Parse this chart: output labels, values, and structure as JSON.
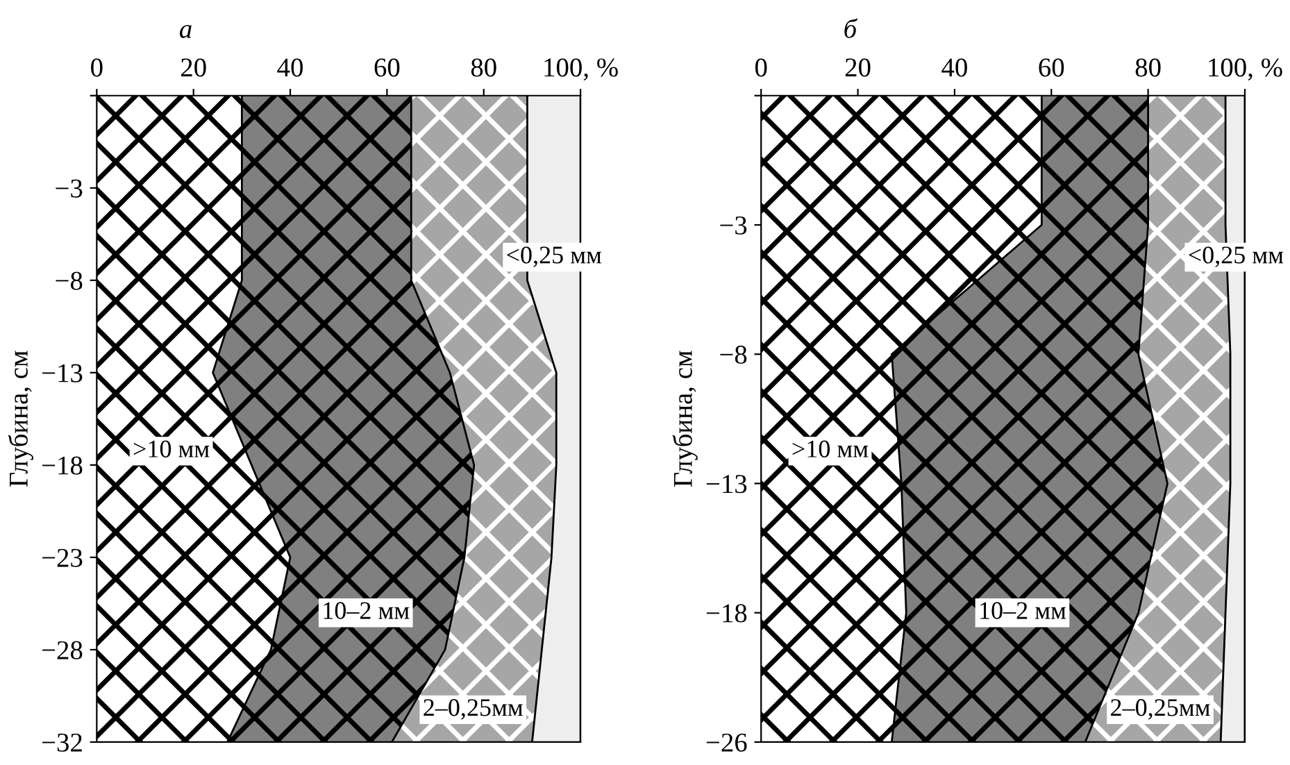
{
  "chart_data": [
    {
      "type": "area",
      "title": "а",
      "orientation": "horizontal",
      "stacked": true,
      "ylabel": "Глубина, см",
      "categories": [
        null,
        "−3",
        "−8",
        "−13",
        "−18",
        "−23",
        "−28",
        "−32"
      ],
      "xlim": [
        0,
        100
      ],
      "xticks": [
        0,
        20,
        40,
        60,
        80,
        {
          "value": 100,
          "label": "100, %"
        }
      ],
      "grid": false,
      "legend": false,
      "series": [
        {
          "name": ">10 мм",
          "color": "#ffffff",
          "values": [
            30,
            30,
            30,
            24,
            32,
            40,
            36,
            27
          ]
        },
        {
          "name": "10–2 мм",
          "color": "#808080",
          "values": [
            35,
            35,
            35,
            49,
            46,
            36,
            36,
            34
          ]
        },
        {
          "name": "2–0,25мм",
          "color": "#a6a6a6",
          "values": [
            24,
            24,
            24,
            22,
            17,
            18,
            20,
            29
          ]
        },
        {
          "name": "<0,25 мм",
          "color": "#eeeeee",
          "values": [
            11,
            11,
            11,
            5,
            5,
            6,
            8,
            10
          ]
        }
      ]
    },
    {
      "type": "area",
      "title": "б",
      "orientation": "horizontal",
      "stacked": true,
      "ylabel": "Глубина, см",
      "categories": [
        null,
        "−3",
        "−8",
        "−13",
        "−18",
        "−26"
      ],
      "xlim": [
        0,
        100
      ],
      "xticks": [
        0,
        20,
        40,
        60,
        80,
        {
          "value": 100,
          "label": "100, %"
        }
      ],
      "grid": false,
      "legend": false,
      "series": [
        {
          "name": ">10 мм",
          "color": "#ffffff",
          "values": [
            58,
            58,
            27,
            29,
            30,
            27
          ]
        },
        {
          "name": "10–2 мм",
          "color": "#808080",
          "values": [
            22,
            22,
            51,
            55,
            48,
            40
          ]
        },
        {
          "name": "2–0,25мм",
          "color": "#a6a6a6",
          "values": [
            16,
            16,
            19,
            13,
            18,
            28
          ]
        },
        {
          "name": "<0,25 мм",
          "color": "#eeeeee",
          "values": [
            4,
            4,
            3,
            3,
            4,
            5
          ]
        }
      ]
    }
  ]
}
